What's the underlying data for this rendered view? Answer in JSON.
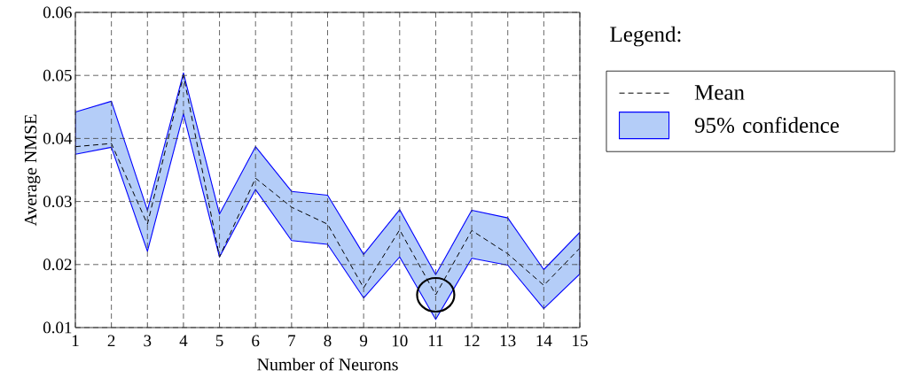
{
  "chart_data": {
    "type": "line",
    "xlabel": "Number of Neurons",
    "ylabel": "Average NMSE",
    "legend_title": "Legend:",
    "annotations": [
      "95% confidence"
    ],
    "x": [
      1,
      2,
      3,
      4,
      5,
      6,
      7,
      8,
      9,
      10,
      11,
      12,
      13,
      14,
      15
    ],
    "series": [
      {
        "name": "Mean",
        "color": "#000000",
        "line_style": "dashed",
        "values": [
          0.0387,
          0.0392,
          0.0264,
          0.05,
          0.0212,
          0.0337,
          0.0291,
          0.0264,
          0.0163,
          0.0255,
          0.0152,
          0.0254,
          0.0217,
          0.0167,
          0.0226
        ],
        "upper": [
          0.0442,
          0.0459,
          0.0286,
          0.0504,
          0.028,
          0.0387,
          0.0316,
          0.031,
          0.0216,
          0.0287,
          0.0184,
          0.0286,
          0.0274,
          0.0192,
          0.0251
        ],
        "lower": [
          0.0375,
          0.0386,
          0.0221,
          0.0439,
          0.0212,
          0.0319,
          0.0238,
          0.0232,
          0.0147,
          0.0212,
          0.0113,
          0.021,
          0.0199,
          0.013,
          0.0185
        ]
      }
    ],
    "xlim": [
      1,
      15
    ],
    "xticks": [
      1,
      2,
      3,
      4,
      5,
      6,
      7,
      8,
      9,
      10,
      11,
      12,
      13,
      14,
      15
    ],
    "ylim": [
      0.01,
      0.06
    ],
    "yticks": [
      0.01,
      0.02,
      0.03,
      0.04,
      0.05,
      0.06
    ],
    "grid": true,
    "legend": "right",
    "marker": "none"
  }
}
